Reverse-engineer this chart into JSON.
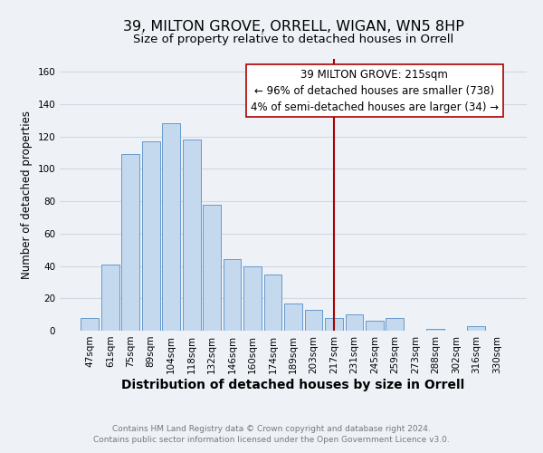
{
  "title": "39, MILTON GROVE, ORRELL, WIGAN, WN5 8HP",
  "subtitle": "Size of property relative to detached houses in Orrell",
  "xlabel": "Distribution of detached houses by size in Orrell",
  "ylabel": "Number of detached properties",
  "bar_labels": [
    "47sqm",
    "61sqm",
    "75sqm",
    "89sqm",
    "104sqm",
    "118sqm",
    "132sqm",
    "146sqm",
    "160sqm",
    "174sqm",
    "189sqm",
    "203sqm",
    "217sqm",
    "231sqm",
    "245sqm",
    "259sqm",
    "273sqm",
    "288sqm",
    "302sqm",
    "316sqm",
    "330sqm"
  ],
  "bar_values": [
    8,
    41,
    109,
    117,
    128,
    118,
    78,
    44,
    40,
    35,
    17,
    13,
    8,
    10,
    6,
    8,
    0,
    1,
    0,
    3,
    0
  ],
  "bar_color": "#c5d9ee",
  "bar_edge_color": "#6699cc",
  "vline_x_index": 12,
  "vline_color": "#aa0000",
  "annotation_title": "39 MILTON GROVE: 215sqm",
  "annotation_line1": "← 96% of detached houses are smaller (738)",
  "annotation_line2": "4% of semi-detached houses are larger (34) →",
  "annotation_box_facecolor": "#ffffff",
  "annotation_box_edgecolor": "#aa0000",
  "footer_line1": "Contains HM Land Registry data © Crown copyright and database right 2024.",
  "footer_line2": "Contains public sector information licensed under the Open Government Licence v3.0.",
  "ylim": [
    0,
    168
  ],
  "yticks": [
    0,
    20,
    40,
    60,
    80,
    100,
    120,
    140,
    160
  ],
  "title_fontsize": 11.5,
  "subtitle_fontsize": 9.5,
  "xlabel_fontsize": 10,
  "ylabel_fontsize": 8.5,
  "tick_fontsize": 7.5,
  "footer_fontsize": 6.5,
  "annotation_fontsize": 8.5,
  "background_color": "#eef2f7",
  "grid_color": "#d0d8e4",
  "fig_width": 6.0,
  "fig_height": 5.0,
  "dpi": 100
}
